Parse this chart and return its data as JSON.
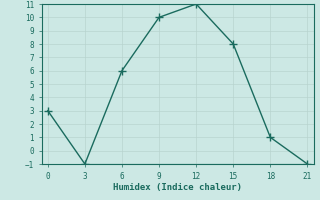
{
  "x": [
    0,
    3,
    6,
    9,
    12,
    15,
    18,
    21
  ],
  "y": [
    3,
    -1,
    6,
    10,
    11,
    8,
    1,
    -1
  ],
  "xlabel": "Humidex (Indice chaleur)",
  "xlim": [
    -0.5,
    21.5
  ],
  "ylim": [
    -1,
    11
  ],
  "xticks": [
    0,
    3,
    6,
    9,
    12,
    15,
    18,
    21
  ],
  "yticks": [
    -1,
    0,
    1,
    2,
    3,
    4,
    5,
    6,
    7,
    8,
    9,
    10,
    11
  ],
  "line_color": "#1a6b5e",
  "bg_color": "#cce8e4",
  "grid_color": "#b8d4cf",
  "markersize": 3,
  "linewidth": 1.0,
  "tick_fontsize": 5.5,
  "xlabel_fontsize": 6.5
}
